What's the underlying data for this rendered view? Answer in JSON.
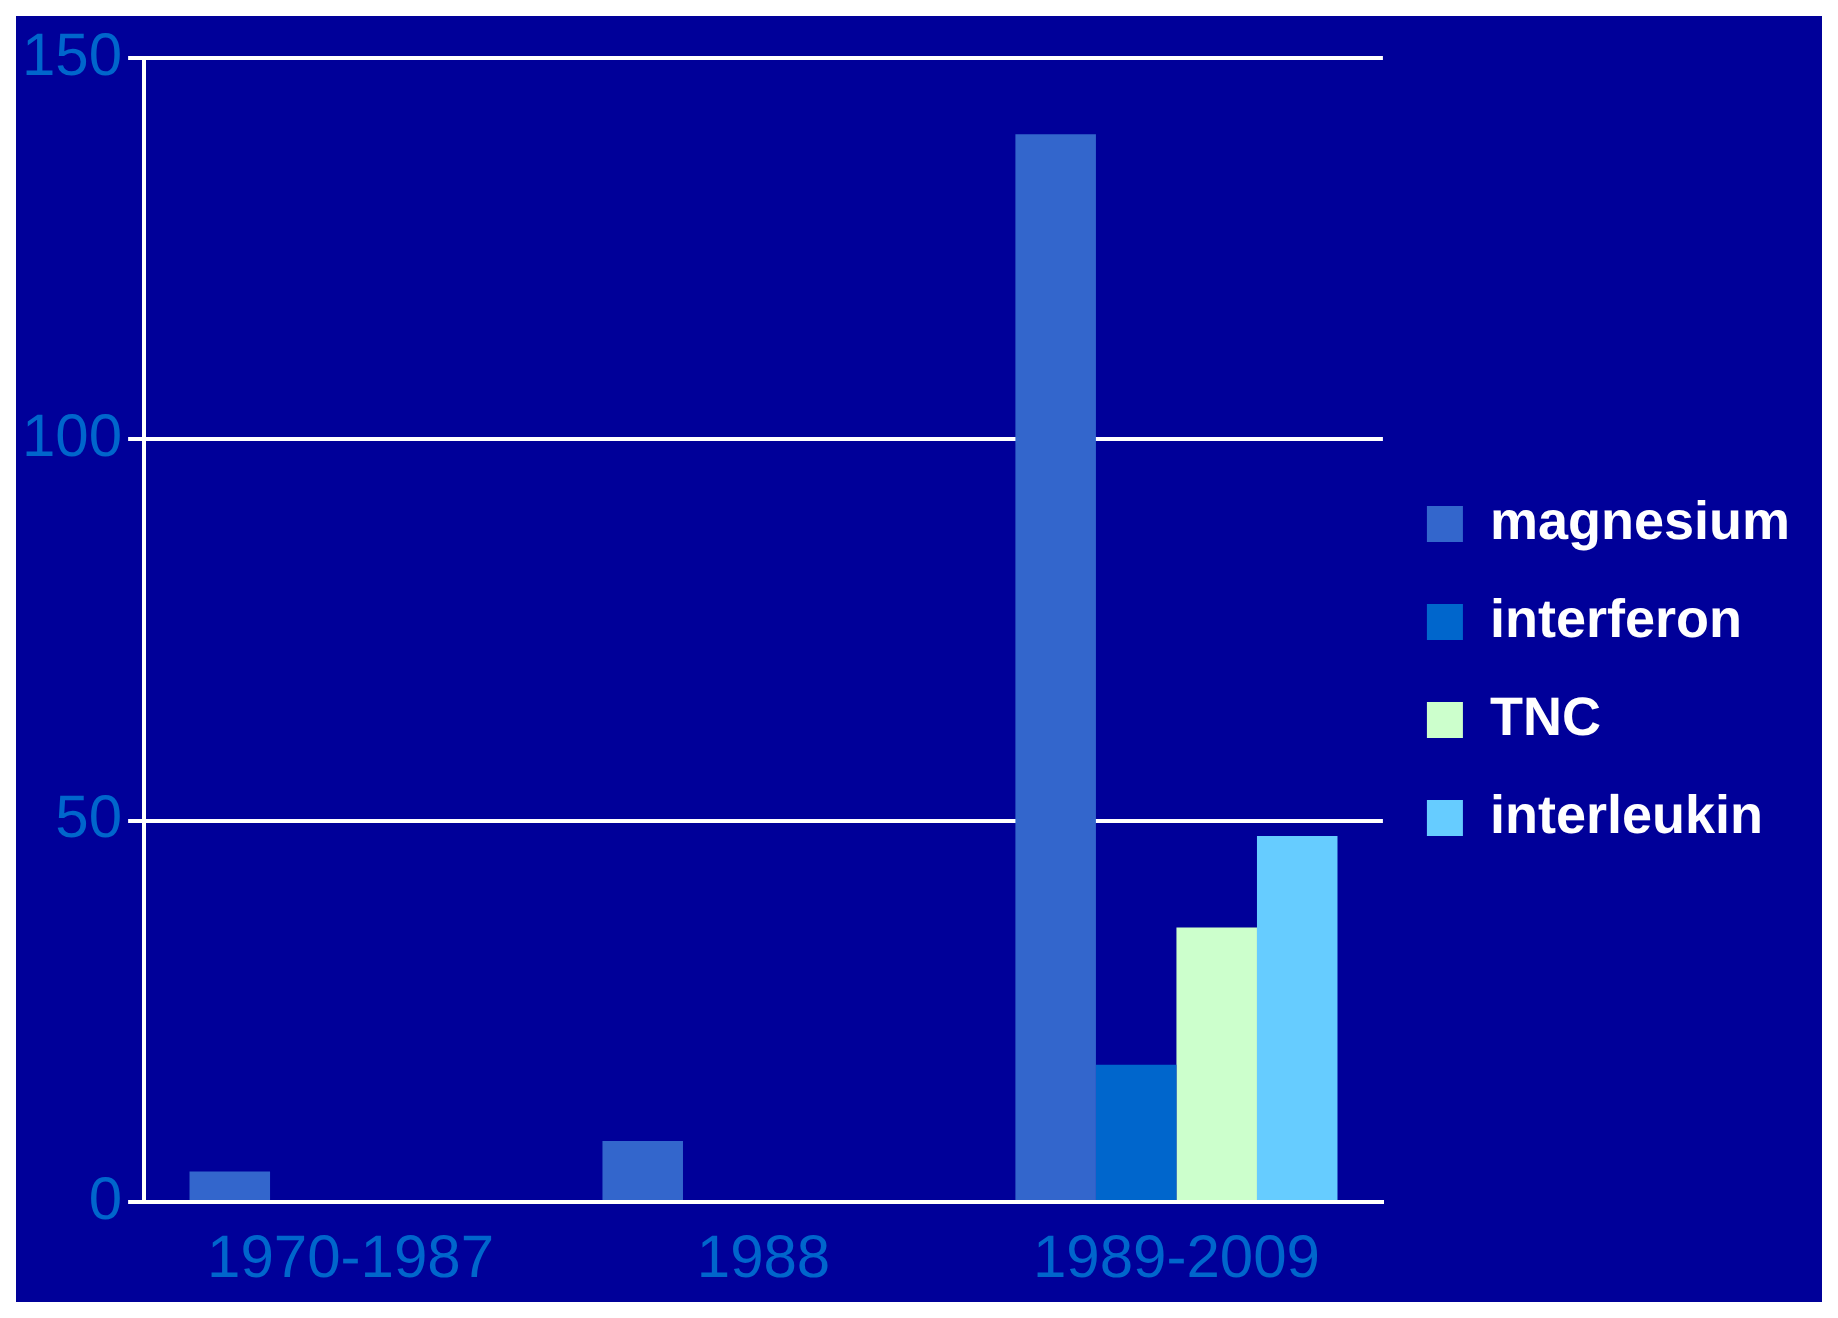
{
  "chart_data": {
    "type": "bar",
    "categories": [
      "1970-1987",
      "1988",
      "1989-2009"
    ],
    "series": [
      {
        "name": "magnesium",
        "color": "#3366cc",
        "values": [
          4,
          8,
          140
        ]
      },
      {
        "name": "interferon",
        "color": "#0066cc",
        "values": [
          0,
          0,
          18
        ]
      },
      {
        "name": "TNC",
        "color": "#ccffcc",
        "values": [
          0,
          0,
          36
        ]
      },
      {
        "name": "interleukin",
        "color": "#66ccff",
        "values": [
          0,
          0,
          48
        ]
      }
    ],
    "ylim": [
      0,
      150
    ],
    "yticks": [
      0,
      50,
      100,
      150
    ],
    "grid": "y",
    "legend": "right"
  }
}
